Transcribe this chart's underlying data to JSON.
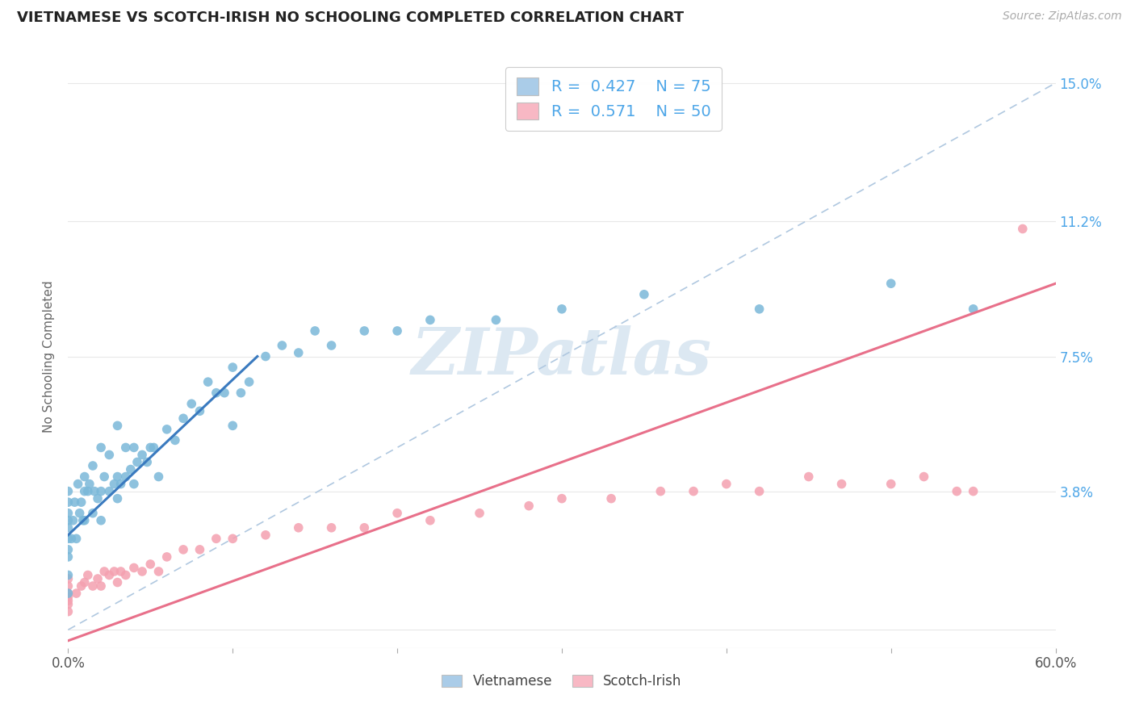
{
  "title": "VIETNAMESE VS SCOTCH-IRISH NO SCHOOLING COMPLETED CORRELATION CHART",
  "source": "Source: ZipAtlas.com",
  "ylabel": "No Schooling Completed",
  "xlim": [
    0.0,
    0.6
  ],
  "ylim": [
    -0.005,
    0.155
  ],
  "xtick_positions": [
    0.0,
    0.1,
    0.2,
    0.3,
    0.4,
    0.5,
    0.6
  ],
  "xticklabels": [
    "0.0%",
    "",
    "",
    "",
    "",
    "",
    "60.0%"
  ],
  "ytick_positions": [
    0.0,
    0.038,
    0.075,
    0.112,
    0.15
  ],
  "yticklabels_right": [
    "",
    "3.8%",
    "7.5%",
    "11.2%",
    "15.0%"
  ],
  "vietnamese_R": 0.427,
  "vietnamese_N": 75,
  "scotchirish_R": 0.571,
  "scotchirish_N": 50,
  "viet_dot_color": "#7ab8d9",
  "scotch_dot_color": "#f4a0b0",
  "viet_line_color": "#3a7abf",
  "scotch_line_color": "#e8708a",
  "diagonal_color": "#b0c8e0",
  "background_color": "#ffffff",
  "grid_color": "#e8e8e8",
  "watermark_color": "#dce8f2",
  "watermark_text": "ZIPatlas",
  "legend_viet_color": "#aacce8",
  "legend_scotch_color": "#f8b8c4",
  "viet_x": [
    0.0,
    0.0,
    0.0,
    0.0,
    0.0,
    0.0,
    0.0,
    0.0,
    0.0,
    0.0,
    0.002,
    0.003,
    0.004,
    0.005,
    0.006,
    0.007,
    0.008,
    0.009,
    0.01,
    0.01,
    0.01,
    0.012,
    0.013,
    0.015,
    0.015,
    0.016,
    0.018,
    0.02,
    0.02,
    0.02,
    0.022,
    0.025,
    0.025,
    0.028,
    0.03,
    0.03,
    0.03,
    0.032,
    0.035,
    0.035,
    0.038,
    0.04,
    0.04,
    0.042,
    0.045,
    0.048,
    0.05,
    0.052,
    0.055,
    0.06,
    0.065,
    0.07,
    0.075,
    0.08,
    0.085,
    0.09,
    0.095,
    0.1,
    0.1,
    0.105,
    0.11,
    0.12,
    0.13,
    0.14,
    0.15,
    0.16,
    0.18,
    0.2,
    0.22,
    0.26,
    0.3,
    0.35,
    0.42,
    0.5,
    0.55
  ],
  "viet_y": [
    0.01,
    0.015,
    0.02,
    0.022,
    0.025,
    0.028,
    0.03,
    0.032,
    0.035,
    0.038,
    0.025,
    0.03,
    0.035,
    0.025,
    0.04,
    0.032,
    0.035,
    0.03,
    0.03,
    0.038,
    0.042,
    0.038,
    0.04,
    0.032,
    0.045,
    0.038,
    0.036,
    0.03,
    0.038,
    0.05,
    0.042,
    0.038,
    0.048,
    0.04,
    0.036,
    0.042,
    0.056,
    0.04,
    0.042,
    0.05,
    0.044,
    0.04,
    0.05,
    0.046,
    0.048,
    0.046,
    0.05,
    0.05,
    0.042,
    0.055,
    0.052,
    0.058,
    0.062,
    0.06,
    0.068,
    0.065,
    0.065,
    0.056,
    0.072,
    0.065,
    0.068,
    0.075,
    0.078,
    0.076,
    0.082,
    0.078,
    0.082,
    0.082,
    0.085,
    0.085,
    0.088,
    0.092,
    0.088,
    0.095,
    0.088
  ],
  "scotch_x": [
    0.0,
    0.0,
    0.0,
    0.0,
    0.0,
    0.0,
    0.0,
    0.005,
    0.008,
    0.01,
    0.012,
    0.015,
    0.018,
    0.02,
    0.022,
    0.025,
    0.028,
    0.03,
    0.032,
    0.035,
    0.04,
    0.045,
    0.05,
    0.055,
    0.06,
    0.07,
    0.08,
    0.09,
    0.1,
    0.12,
    0.14,
    0.16,
    0.18,
    0.2,
    0.22,
    0.25,
    0.28,
    0.3,
    0.33,
    0.36,
    0.38,
    0.4,
    0.42,
    0.45,
    0.47,
    0.5,
    0.52,
    0.54,
    0.55,
    0.58
  ],
  "scotch_y": [
    0.005,
    0.007,
    0.008,
    0.009,
    0.01,
    0.012,
    0.014,
    0.01,
    0.012,
    0.013,
    0.015,
    0.012,
    0.014,
    0.012,
    0.016,
    0.015,
    0.016,
    0.013,
    0.016,
    0.015,
    0.017,
    0.016,
    0.018,
    0.016,
    0.02,
    0.022,
    0.022,
    0.025,
    0.025,
    0.026,
    0.028,
    0.028,
    0.028,
    0.032,
    0.03,
    0.032,
    0.034,
    0.036,
    0.036,
    0.038,
    0.038,
    0.04,
    0.038,
    0.042,
    0.04,
    0.04,
    0.042,
    0.038,
    0.038,
    0.11
  ],
  "viet_line_x0": 0.0,
  "viet_line_y0": 0.026,
  "viet_line_x1": 0.115,
  "viet_line_y1": 0.075,
  "scotch_line_x0": 0.0,
  "scotch_line_y0": -0.003,
  "scotch_line_x1": 0.6,
  "scotch_line_y1": 0.095
}
